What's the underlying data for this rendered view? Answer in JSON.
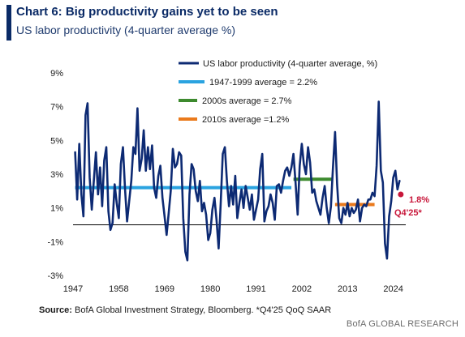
{
  "header": {
    "title": "Chart 6: Big productivity gains yet to be seen",
    "subtitle": "US labor productivity (4-quarter average %)"
  },
  "footer": {
    "source_label": "Source:",
    "source_text": " BofA Global Investment Strategy, Bloomberg. *Q4'25 QoQ SAAR",
    "brand": "BofA GLOBAL RESEARCH"
  },
  "colors": {
    "title": "#0a2a66",
    "line": "#0d2a73",
    "avg_1947_1999": "#2aa3e0",
    "avg_2000s": "#3d8a2e",
    "avg_2010s": "#ea7a1c",
    "annotation": "#c8173a"
  },
  "chart_data": {
    "type": "line",
    "y_axis": {
      "ylim": [
        -3,
        9
      ],
      "ticks": [
        "9%",
        "7%",
        "5%",
        "3%",
        "1%",
        "-1%",
        "-3%"
      ],
      "tick_values": [
        9,
        7,
        5,
        3,
        1,
        -1,
        -3
      ]
    },
    "x_axis": {
      "xlim": [
        1947,
        2027
      ],
      "ticks": [
        "1947",
        "1958",
        "1969",
        "1980",
        "1991",
        "2002",
        "2013",
        "2024"
      ],
      "tick_values": [
        1947,
        1958,
        1969,
        1980,
        1991,
        2002,
        2013,
        2024
      ]
    },
    "zero_line": true,
    "legend_position": "top-right",
    "series": [
      {
        "name": "US labor productivity (4-quarter average, %)",
        "kind": "line",
        "x": [
          1947.5,
          1948.0,
          1948.5,
          1949.0,
          1949.5,
          1950.0,
          1950.5,
          1951.0,
          1951.5,
          1952.0,
          1952.5,
          1953.0,
          1953.5,
          1954.0,
          1954.5,
          1955.0,
          1955.5,
          1956.0,
          1956.5,
          1957.0,
          1957.5,
          1958.0,
          1958.5,
          1959.0,
          1959.5,
          1960.0,
          1960.5,
          1961.0,
          1961.5,
          1962.0,
          1962.5,
          1963.0,
          1963.5,
          1964.0,
          1964.5,
          1965.0,
          1965.5,
          1966.0,
          1966.5,
          1967.0,
          1967.5,
          1968.0,
          1968.5,
          1969.0,
          1969.5,
          1970.0,
          1970.5,
          1971.0,
          1971.5,
          1972.0,
          1972.5,
          1973.0,
          1973.5,
          1974.0,
          1974.5,
          1975.0,
          1975.5,
          1976.0,
          1976.5,
          1977.0,
          1977.5,
          1978.0,
          1978.5,
          1979.0,
          1979.5,
          1980.0,
          1980.5,
          1981.0,
          1981.5,
          1982.0,
          1982.5,
          1983.0,
          1983.5,
          1984.0,
          1984.5,
          1985.0,
          1985.5,
          1986.0,
          1986.5,
          1987.0,
          1987.5,
          1988.0,
          1988.5,
          1989.0,
          1989.5,
          1990.0,
          1990.5,
          1991.0,
          1991.5,
          1992.0,
          1992.5,
          1993.0,
          1993.5,
          1994.0,
          1994.5,
          1995.0,
          1995.5,
          1996.0,
          1996.5,
          1997.0,
          1997.5,
          1998.0,
          1998.5,
          1999.0,
          1999.5,
          2000.0,
          2000.5,
          2001.0,
          2001.5,
          2002.0,
          2002.5,
          2003.0,
          2003.5,
          2004.0,
          2004.5,
          2005.0,
          2005.5,
          2006.0,
          2006.5,
          2007.0,
          2007.5,
          2008.0,
          2008.5,
          2009.0,
          2009.5,
          2010.0,
          2010.5,
          2011.0,
          2011.5,
          2012.0,
          2012.5,
          2013.0,
          2013.5,
          2014.0,
          2014.5,
          2015.0,
          2015.5,
          2016.0,
          2016.5,
          2017.0,
          2017.5,
          2018.0,
          2018.5,
          2019.0,
          2019.5,
          2020.0,
          2020.5,
          2021.0,
          2021.5,
          2022.0,
          2022.5,
          2023.0,
          2023.5,
          2024.0,
          2024.5,
          2025.0,
          2025.5
        ],
        "values": [
          4.3,
          1.5,
          4.8,
          1.8,
          0.5,
          6.5,
          7.2,
          2.8,
          0.9,
          2.6,
          4.3,
          1.8,
          3.4,
          1.1,
          3.8,
          4.6,
          0.8,
          -0.3,
          0.1,
          2.4,
          1.3,
          0.4,
          3.6,
          4.6,
          2.1,
          0.2,
          1.4,
          2.6,
          4.6,
          4.2,
          6.9,
          3.2,
          3.9,
          5.6,
          3.2,
          4.6,
          3.3,
          4.7,
          2.2,
          1.6,
          2.9,
          3.5,
          1.6,
          0.5,
          -0.6,
          0.7,
          2.0,
          4.5,
          3.4,
          3.6,
          4.3,
          4.1,
          0.4,
          -1.6,
          -2.1,
          1.8,
          3.6,
          3.3,
          2.0,
          1.4,
          2.6,
          0.8,
          1.3,
          0.6,
          -0.9,
          -0.5,
          0.9,
          1.6,
          0.3,
          -1.4,
          1.2,
          4.2,
          4.6,
          2.6,
          1.1,
          2.3,
          1.2,
          2.9,
          0.4,
          1.3,
          2.1,
          1.0,
          2.3,
          1.6,
          0.9,
          1.8,
          0.3,
          0.9,
          1.5,
          3.3,
          4.2,
          0.2,
          0.8,
          1.1,
          1.8,
          1.3,
          0.3,
          2.3,
          2.4,
          1.9,
          2.6,
          3.2,
          3.4,
          2.9,
          3.4,
          4.2,
          2.5,
          0.6,
          3.5,
          4.8,
          3.6,
          3.0,
          4.6,
          3.7,
          1.9,
          2.1,
          1.4,
          1.0,
          0.6,
          1.6,
          2.3,
          1.0,
          0.1,
          1.1,
          3.4,
          5.5,
          2.4,
          0.4,
          0.1,
          1.0,
          0.6,
          1.3,
          0.5,
          1.0,
          0.7,
          0.9,
          1.5,
          0.2,
          1.0,
          1.2,
          1.1,
          1.5,
          1.5,
          1.9,
          1.7,
          3.5,
          7.3,
          3.2,
          2.5,
          -1.1,
          -2.0,
          0.5,
          1.4,
          2.8,
          3.2,
          2.1,
          2.6
        ]
      },
      {
        "name": "1947-1999 average = 2.2%",
        "kind": "average",
        "value": 2.2,
        "x_range": [
          1947.5,
          1999.5
        ]
      },
      {
        "name": "2000s average = 2.7%",
        "kind": "average",
        "value": 2.7,
        "x_range": [
          2000.0,
          2009.5
        ]
      },
      {
        "name": "2010s average =1.2%",
        "kind": "average",
        "value": 1.2,
        "x_range": [
          2010.0,
          2019.5
        ]
      }
    ],
    "annotations": [
      {
        "text_line1": "1.8%",
        "text_line2": "Q4'25*",
        "x": 2025.8,
        "y": 1.8
      }
    ]
  }
}
